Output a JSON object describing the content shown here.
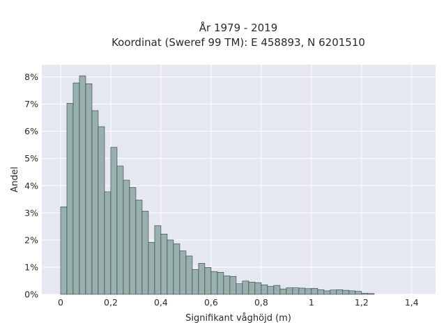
{
  "chart_data": {
    "type": "bar",
    "title": "År 1979 - 2019",
    "subtitle": "Koordinat (Sweref 99 TM): E 458893, N 6201510",
    "xlabel": "Signifikant våghöjd (m)",
    "ylabel": "Andel",
    "x_ticks": [
      "0",
      "0,2",
      "0,4",
      "0,6",
      "0,8",
      "1",
      "1,2",
      "1,4"
    ],
    "x_tick_values": [
      0,
      0.2,
      0.4,
      0.6,
      0.8,
      1.0,
      1.2,
      1.4
    ],
    "y_ticks": [
      "0%",
      "1%",
      "2%",
      "3%",
      "4%",
      "5%",
      "6%",
      "7%",
      "8%"
    ],
    "y_tick_values": [
      0,
      1,
      2,
      3,
      4,
      5,
      6,
      7,
      8
    ],
    "xlim": [
      -0.075,
      1.495
    ],
    "ylim": [
      0,
      8.45
    ],
    "bin_width": 0.025,
    "bin_start": 0.0,
    "values": [
      3.22,
      7.03,
      7.78,
      8.04,
      7.75,
      6.76,
      6.17,
      3.77,
      5.41,
      4.72,
      4.2,
      3.93,
      3.47,
      3.06,
      1.91,
      2.53,
      2.22,
      2.0,
      1.86,
      1.6,
      1.41,
      0.91,
      1.14,
      0.99,
      0.84,
      0.81,
      0.68,
      0.66,
      0.39,
      0.49,
      0.45,
      0.43,
      0.35,
      0.29,
      0.33,
      0.2,
      0.24,
      0.24,
      0.23,
      0.21,
      0.22,
      0.17,
      0.13,
      0.16,
      0.17,
      0.15,
      0.13,
      0.11,
      0.04,
      0.03
    ],
    "grid": true,
    "colors": {
      "bar": "#98b0ae",
      "bar_edge": "#2f3a39",
      "plot_bg": "#e5e8f1",
      "grid": "#ffffff"
    }
  }
}
